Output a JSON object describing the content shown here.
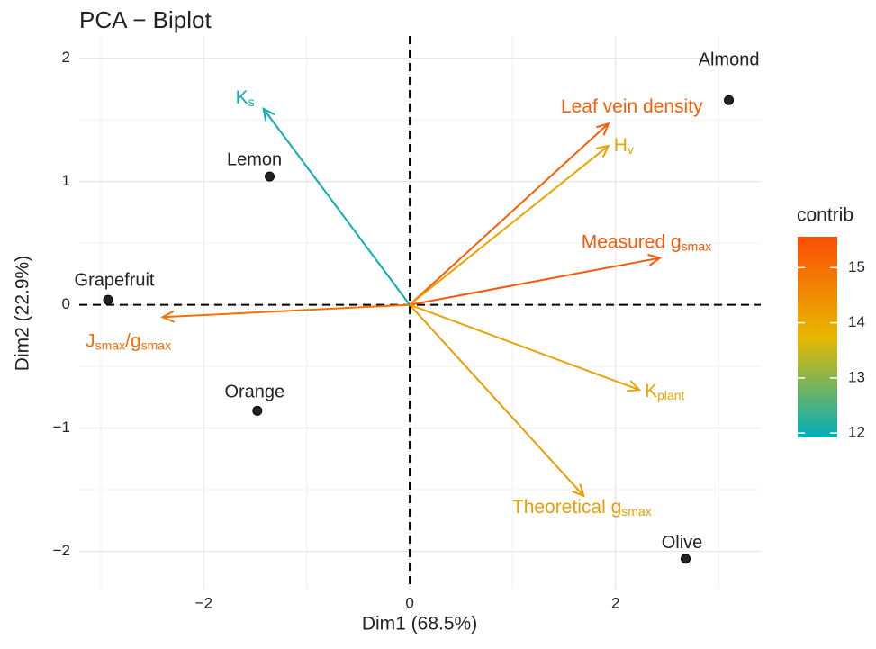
{
  "chart_data": {
    "type": "biplot",
    "title": "PCA − Biplot",
    "x_label": "Dim1 (68.5%)",
    "y_label": "Dim2 (22.9%)",
    "xlim": [
      -3.21,
      3.41
    ],
    "ylim": [
      -2.31,
      2.18
    ],
    "xticks": [
      {
        "value": -2,
        "label": "−2"
      },
      0,
      2
    ],
    "yticks": [
      {
        "value": -2,
        "label": "−2"
      },
      {
        "value": -1,
        "label": "−1"
      },
      0,
      1,
      2
    ],
    "grid": true,
    "point_color": "#222222",
    "individuals": [
      {
        "name": "Almond",
        "x": 3.1,
        "y": 1.66
      },
      {
        "name": "Lemon",
        "x": -1.36,
        "y": 1.04
      },
      {
        "name": "Grapefruit",
        "x": -2.93,
        "y": 0.04
      },
      {
        "name": "Orange",
        "x": -1.48,
        "y": -0.86
      },
      {
        "name": "Olive",
        "x": 2.68,
        "y": -2.06
      }
    ],
    "variables": [
      {
        "name": [
          {
            "text": "K"
          },
          {
            "text": "s",
            "sub": true
          }
        ],
        "x": -1.42,
        "y": 1.59,
        "contrib": 12.0
      },
      {
        "name": [
          {
            "text": "Leaf vein density"
          }
        ],
        "x": 1.93,
        "y": 1.47,
        "contrib": 15.3
      },
      {
        "name": [
          {
            "text": "H"
          },
          {
            "text": "v",
            "sub": true
          }
        ],
        "x": 1.93,
        "y": 1.29,
        "contrib": 14.1
      },
      {
        "name": [
          {
            "text": "Measured g"
          },
          {
            "text": "smax",
            "sub": true
          }
        ],
        "x": 2.43,
        "y": 0.38,
        "contrib": 15.4
      },
      {
        "name": [
          {
            "text": "J"
          },
          {
            "text": "smax",
            "sub": true
          },
          {
            "text": "/g"
          },
          {
            "text": "smax",
            "sub": true
          }
        ],
        "x": -2.4,
        "y": -0.1,
        "contrib": 15.0
      },
      {
        "name": [
          {
            "text": "K"
          },
          {
            "text": "plant",
            "sub": true
          }
        ],
        "x": 2.23,
        "y": -0.69,
        "contrib": 14.1
      },
      {
        "name": [
          {
            "text": "Theoretical  g"
          },
          {
            "text": "smax",
            "sub": true
          }
        ],
        "x": 1.69,
        "y": -1.55,
        "contrib": 14.2
      }
    ],
    "legend": {
      "title": "contrib",
      "clim": [
        11.92,
        15.56
      ],
      "ticks": [
        12,
        13,
        14,
        15
      ],
      "colors": [
        "#00AFBB",
        "#E7B800",
        "#FC4E07"
      ]
    }
  }
}
